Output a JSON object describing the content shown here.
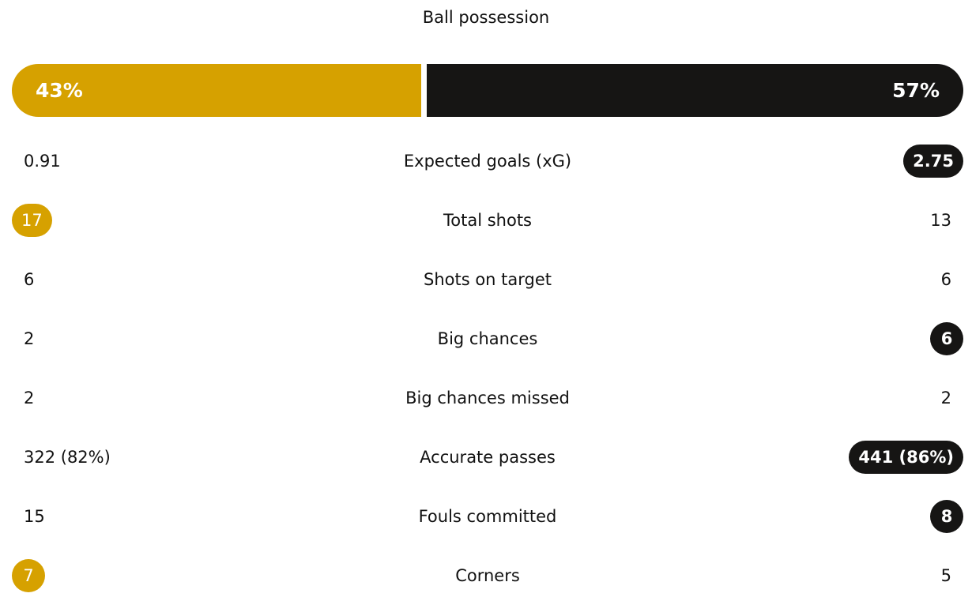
{
  "title": "Ball possession",
  "possession": {
    "home": "43%",
    "away": "57%",
    "home_fraction": 0.43,
    "home_color": "#d6a100",
    "away_color": "#161514"
  },
  "stats": [
    {
      "label": "Expected goals (xG)",
      "home": "0.91",
      "away": "2.75",
      "highlight": "away"
    },
    {
      "label": "Total shots",
      "home": "17",
      "away": "13",
      "highlight": "home"
    },
    {
      "label": "Shots on target",
      "home": "6",
      "away": "6",
      "highlight": ""
    },
    {
      "label": "Big chances",
      "home": "2",
      "away": "6",
      "highlight": "away"
    },
    {
      "label": "Big chances missed",
      "home": "2",
      "away": "2",
      "highlight": ""
    },
    {
      "label": "Accurate passes",
      "home": "322 (82%)",
      "away": "441 (86%)",
      "highlight": "away"
    },
    {
      "label": "Fouls committed",
      "home": "15",
      "away": "8",
      "highlight": "away"
    },
    {
      "label": "Corners",
      "home": "7",
      "away": "5",
      "highlight": "home"
    }
  ]
}
